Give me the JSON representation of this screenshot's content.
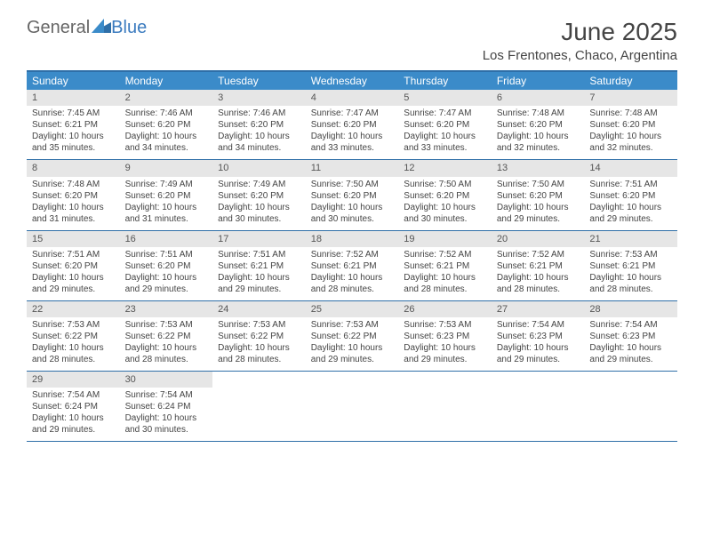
{
  "logo": {
    "text1": "General",
    "text2": "Blue"
  },
  "title": "June 2025",
  "location": "Los Frentones, Chaco, Argentina",
  "colors": {
    "header_bg": "#3b8bc9",
    "header_text": "#ffffff",
    "rule": "#2f6fa8",
    "daynum_bg": "#e6e6e6",
    "text": "#444444",
    "logo_gray": "#666666",
    "logo_blue": "#3b7bbf"
  },
  "dayNames": [
    "Sunday",
    "Monday",
    "Tuesday",
    "Wednesday",
    "Thursday",
    "Friday",
    "Saturday"
  ],
  "days": [
    {
      "n": "1",
      "sr": "7:45 AM",
      "ss": "6:21 PM",
      "dl": "10 hours and 35 minutes."
    },
    {
      "n": "2",
      "sr": "7:46 AM",
      "ss": "6:20 PM",
      "dl": "10 hours and 34 minutes."
    },
    {
      "n": "3",
      "sr": "7:46 AM",
      "ss": "6:20 PM",
      "dl": "10 hours and 34 minutes."
    },
    {
      "n": "4",
      "sr": "7:47 AM",
      "ss": "6:20 PM",
      "dl": "10 hours and 33 minutes."
    },
    {
      "n": "5",
      "sr": "7:47 AM",
      "ss": "6:20 PM",
      "dl": "10 hours and 33 minutes."
    },
    {
      "n": "6",
      "sr": "7:48 AM",
      "ss": "6:20 PM",
      "dl": "10 hours and 32 minutes."
    },
    {
      "n": "7",
      "sr": "7:48 AM",
      "ss": "6:20 PM",
      "dl": "10 hours and 32 minutes."
    },
    {
      "n": "8",
      "sr": "7:48 AM",
      "ss": "6:20 PM",
      "dl": "10 hours and 31 minutes."
    },
    {
      "n": "9",
      "sr": "7:49 AM",
      "ss": "6:20 PM",
      "dl": "10 hours and 31 minutes."
    },
    {
      "n": "10",
      "sr": "7:49 AM",
      "ss": "6:20 PM",
      "dl": "10 hours and 30 minutes."
    },
    {
      "n": "11",
      "sr": "7:50 AM",
      "ss": "6:20 PM",
      "dl": "10 hours and 30 minutes."
    },
    {
      "n": "12",
      "sr": "7:50 AM",
      "ss": "6:20 PM",
      "dl": "10 hours and 30 minutes."
    },
    {
      "n": "13",
      "sr": "7:50 AM",
      "ss": "6:20 PM",
      "dl": "10 hours and 29 minutes."
    },
    {
      "n": "14",
      "sr": "7:51 AM",
      "ss": "6:20 PM",
      "dl": "10 hours and 29 minutes."
    },
    {
      "n": "15",
      "sr": "7:51 AM",
      "ss": "6:20 PM",
      "dl": "10 hours and 29 minutes."
    },
    {
      "n": "16",
      "sr": "7:51 AM",
      "ss": "6:20 PM",
      "dl": "10 hours and 29 minutes."
    },
    {
      "n": "17",
      "sr": "7:51 AM",
      "ss": "6:21 PM",
      "dl": "10 hours and 29 minutes."
    },
    {
      "n": "18",
      "sr": "7:52 AM",
      "ss": "6:21 PM",
      "dl": "10 hours and 28 minutes."
    },
    {
      "n": "19",
      "sr": "7:52 AM",
      "ss": "6:21 PM",
      "dl": "10 hours and 28 minutes."
    },
    {
      "n": "20",
      "sr": "7:52 AM",
      "ss": "6:21 PM",
      "dl": "10 hours and 28 minutes."
    },
    {
      "n": "21",
      "sr": "7:53 AM",
      "ss": "6:21 PM",
      "dl": "10 hours and 28 minutes."
    },
    {
      "n": "22",
      "sr": "7:53 AM",
      "ss": "6:22 PM",
      "dl": "10 hours and 28 minutes."
    },
    {
      "n": "23",
      "sr": "7:53 AM",
      "ss": "6:22 PM",
      "dl": "10 hours and 28 minutes."
    },
    {
      "n": "24",
      "sr": "7:53 AM",
      "ss": "6:22 PM",
      "dl": "10 hours and 28 minutes."
    },
    {
      "n": "25",
      "sr": "7:53 AM",
      "ss": "6:22 PM",
      "dl": "10 hours and 29 minutes."
    },
    {
      "n": "26",
      "sr": "7:53 AM",
      "ss": "6:23 PM",
      "dl": "10 hours and 29 minutes."
    },
    {
      "n": "27",
      "sr": "7:54 AM",
      "ss": "6:23 PM",
      "dl": "10 hours and 29 minutes."
    },
    {
      "n": "28",
      "sr": "7:54 AM",
      "ss": "6:23 PM",
      "dl": "10 hours and 29 minutes."
    },
    {
      "n": "29",
      "sr": "7:54 AM",
      "ss": "6:24 PM",
      "dl": "10 hours and 29 minutes."
    },
    {
      "n": "30",
      "sr": "7:54 AM",
      "ss": "6:24 PM",
      "dl": "10 hours and 30 minutes."
    }
  ],
  "labels": {
    "sunrise": "Sunrise:",
    "sunset": "Sunset:",
    "daylight": "Daylight:"
  }
}
